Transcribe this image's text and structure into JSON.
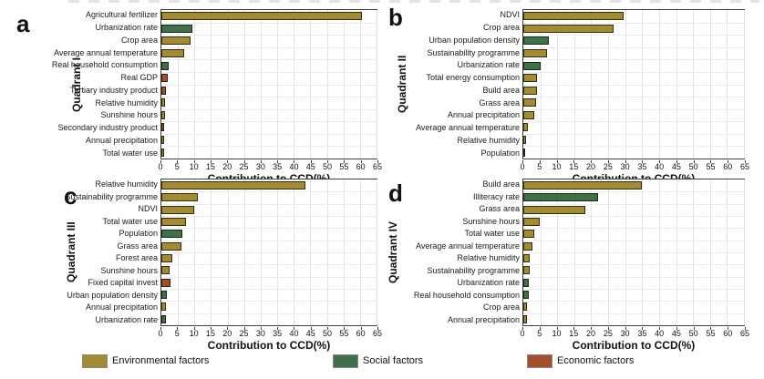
{
  "colors": {
    "environmental": "#A38B33",
    "social": "#3E7049",
    "economic": "#A34F2B",
    "grid": "#e3e3e3",
    "axis": "#3f3f3f"
  },
  "legend": {
    "items": [
      {
        "label": "Environmental factors",
        "key": "environmental"
      },
      {
        "label": "Social factors",
        "key": "social"
      },
      {
        "label": "Economic factors",
        "key": "economic"
      }
    ]
  },
  "axis": {
    "xlabel": "Contribution to CCD(%)",
    "xlim": [
      0,
      65
    ],
    "ticks": [
      0,
      5,
      10,
      15,
      20,
      25,
      30,
      35,
      40,
      45,
      50,
      55,
      60,
      65
    ]
  },
  "chart_data": [
    {
      "type": "bar",
      "panel": "a",
      "quadrant": "Quadrant I",
      "orientation": "horizontal",
      "xlabel": "Contribution to CCD(%)",
      "xlim": [
        0,
        65
      ],
      "categories": [
        "Agricultural fertilizer",
        "Urbanization rate",
        "Crop area",
        "Average annual temperature",
        "Real household consumption",
        "Real GDP",
        "Tertiary industry product",
        "Relative humidity",
        "Sunshine hours",
        "Secondary industry product",
        "Annual precipitation",
        "Total water use"
      ],
      "values": [
        60.5,
        9.5,
        8.7,
        6.9,
        2.3,
        1.8,
        1.3,
        1.0,
        1.0,
        0.9,
        0.8,
        0.7
      ],
      "factors": [
        "environmental",
        "social",
        "environmental",
        "environmental",
        "social",
        "economic",
        "economic",
        "environmental",
        "environmental",
        "economic",
        "environmental",
        "environmental"
      ]
    },
    {
      "type": "bar",
      "panel": "b",
      "quadrant": "Quadrant II",
      "orientation": "horizontal",
      "xlabel": "Contribution to CCD(%)",
      "xlim": [
        0,
        65
      ],
      "categories": [
        "NDVI",
        "Crop area",
        "Urban population density",
        "Sustainability programme",
        "Urbanization rate",
        "Total energy consumption",
        "Build area",
        "Grass area",
        "Annual precipitation",
        "Average annual temperature",
        "Relative humidity",
        "Population"
      ],
      "values": [
        29.6,
        26.6,
        7.6,
        6.9,
        5.2,
        4.1,
        3.9,
        3.8,
        3.1,
        1.3,
        0.9,
        0.5
      ],
      "factors": [
        "environmental",
        "environmental",
        "social",
        "environmental",
        "social",
        "environmental",
        "environmental",
        "environmental",
        "environmental",
        "environmental",
        "environmental",
        "social"
      ]
    },
    {
      "type": "bar",
      "panel": "c",
      "quadrant": "Quadrant III",
      "orientation": "horizontal",
      "xlabel": "Contribution to CCD(%)",
      "xlim": [
        0,
        65
      ],
      "categories": [
        "Relative humidity",
        "Sustainability programme",
        "NDVI",
        "Total water use",
        "Population",
        "Grass area",
        "Forest area",
        "Sunshine hours",
        "Fixed capital invest",
        "Urban population density",
        "Annual precipitation",
        "Urbanization rate"
      ],
      "values": [
        43.5,
        10.9,
        9.8,
        7.4,
        6.3,
        6.0,
        3.3,
        2.5,
        2.7,
        1.6,
        1.5,
        1.3
      ],
      "factors": [
        "environmental",
        "environmental",
        "environmental",
        "environmental",
        "social",
        "environmental",
        "environmental",
        "environmental",
        "economic",
        "social",
        "environmental",
        "social"
      ]
    },
    {
      "type": "bar",
      "panel": "d",
      "quadrant": "Quadrant IV",
      "orientation": "horizontal",
      "xlabel": "Contribution to CCD(%)",
      "xlim": [
        0,
        65
      ],
      "categories": [
        "Build area",
        "Illiteracy rate",
        "Grass area",
        "Sunshine hours",
        "Total water use",
        "Average annual temperature",
        "Relative humidity",
        "Sustainability programme",
        "Urbanization rate",
        "Real household consumption",
        "Crop area",
        "Annual precipitation"
      ],
      "values": [
        34.9,
        21.9,
        18.3,
        4.9,
        3.2,
        2.8,
        2.0,
        1.8,
        1.6,
        1.6,
        1.2,
        1.2
      ],
      "factors": [
        "environmental",
        "social",
        "environmental",
        "environmental",
        "environmental",
        "environmental",
        "environmental",
        "environmental",
        "social",
        "social",
        "environmental",
        "environmental"
      ]
    }
  ]
}
